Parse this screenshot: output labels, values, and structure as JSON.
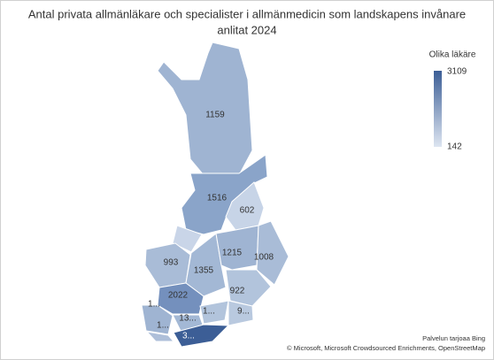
{
  "title": "Antal privata allmänläkare och specialister i allmänmedicin som landskapens invånare anlitat 2024",
  "legend": {
    "title": "Olika läkäre",
    "max": "3109",
    "min": "142"
  },
  "regions": [
    {
      "label": "1159"
    },
    {
      "label": "1516"
    },
    {
      "label": "602"
    },
    {
      "label": "1215"
    },
    {
      "label": "1008"
    },
    {
      "label": "993"
    },
    {
      "label": "1355"
    },
    {
      "label": "2022"
    },
    {
      "label": "922"
    },
    {
      "label": "1..."
    },
    {
      "label": "13..."
    },
    {
      "label": "1..."
    },
    {
      "label": "9..."
    },
    {
      "label": "1..."
    },
    {
      "label": "3..."
    }
  ],
  "attribution": [
    "Palvelun tarjoaa Bing",
    "© Microsoft, Microsoft Crowdsourced Enrichments, OpenStreetMap"
  ]
}
